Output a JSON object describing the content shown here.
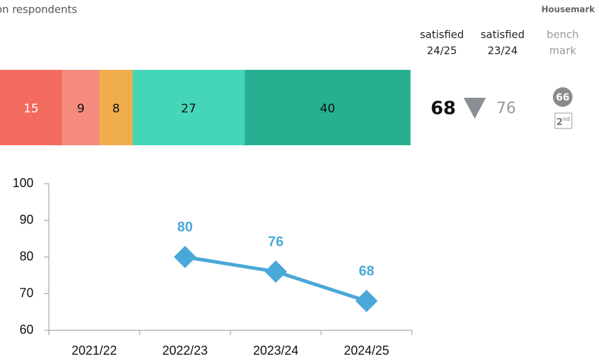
{
  "header": {
    "subtitle": "on respondents",
    "logo": "Housemark"
  },
  "columns": {
    "current": [
      "satisfied",
      "24/25"
    ],
    "previous": [
      "satisfied",
      "23/24"
    ],
    "benchmark": [
      "bench",
      "mark"
    ]
  },
  "summary": {
    "current": 68,
    "previous": 76,
    "benchmark": 66,
    "quartile": "2",
    "quartile_suffix": "nd"
  },
  "chart_data": [
    {
      "type": "stacked_bar",
      "values": [
        15,
        9,
        8,
        27,
        40
      ],
      "colors": [
        "#f26b5e",
        "#f58a7f",
        "#f0ad4e",
        "#45d6b8",
        "#26b091"
      ],
      "label_colors": [
        "#ffffff",
        "#111111",
        "#111111",
        "#111111",
        "#111111"
      ]
    },
    {
      "type": "line",
      "categories": [
        "2021/22",
        "2022/23",
        "2023/24",
        "2024/25"
      ],
      "values": [
        null,
        80,
        76,
        68
      ],
      "color": "#4aa8d8",
      "ylim": [
        60,
        100
      ],
      "yticks": [
        60,
        70,
        80,
        90,
        100
      ]
    }
  ]
}
